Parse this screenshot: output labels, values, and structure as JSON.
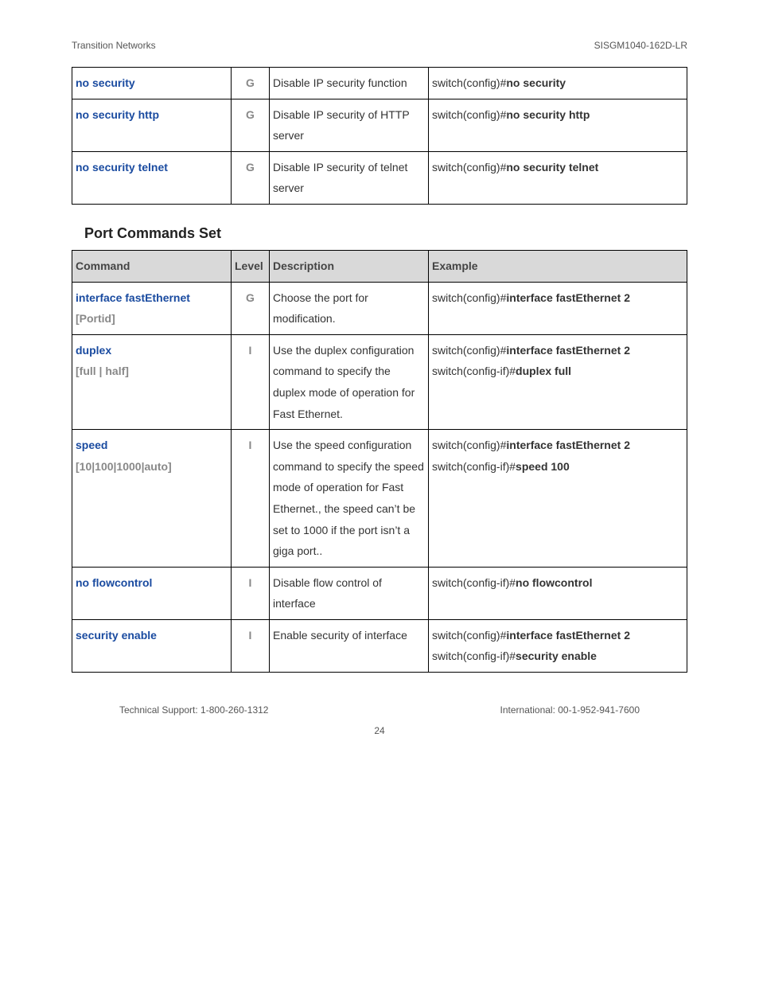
{
  "header": {
    "left": "Transition Networks",
    "right": "SISGM1040-162D-LR"
  },
  "table1": {
    "rows": [
      {
        "cmd_link": "no security",
        "level": "G",
        "desc": "Disable IP security function",
        "ex_prefix": "switch(config)#",
        "ex_bold": "no security"
      },
      {
        "cmd_link": "no security http",
        "level": "G",
        "desc": "Disable IP security of HTTP server",
        "ex_prefix": "switch(config)#",
        "ex_bold": "no security http"
      },
      {
        "cmd_link": "no security telnet",
        "level": "G",
        "desc": "Disable IP security of telnet server",
        "ex_prefix": "switch(config)#",
        "ex_bold": "no security telnet"
      }
    ]
  },
  "section_title": "Port Commands Set",
  "table2": {
    "headers": {
      "cmd": "Command",
      "level": "Level",
      "desc": "Description",
      "ex": "Example"
    },
    "rows": [
      {
        "cmd_link": "interface fastEthernet",
        "cmd_param": "[Portid]",
        "level": "G",
        "desc": "Choose the port for modification.",
        "ex_lines": [
          {
            "prefix": "switch(config)#",
            "bold": "interface fastEthernet 2"
          }
        ]
      },
      {
        "cmd_link": "duplex",
        "cmd_param": "[full | half]",
        "level": "I",
        "desc": "Use the duplex configuration command to specify the duplex mode of operation for Fast Ethernet.",
        "ex_lines": [
          {
            "prefix": "switch(config)#",
            "bold": "interface fastEthernet 2"
          },
          {
            "prefix": "switch(config-if)#",
            "bold": "duplex full"
          }
        ]
      },
      {
        "cmd_link": "speed",
        "cmd_param": "[10|100|1000|auto]",
        "level": "I",
        "desc": "Use the speed configuration command to specify the speed mode of operation for Fast Ethernet., the speed can’t be set to 1000 if the port isn’t a giga port..",
        "ex_lines": [
          {
            "prefix": "switch(config)#",
            "bold": "interface fastEthernet 2"
          },
          {
            "prefix": "switch(config-if)#",
            "bold": "speed 100"
          }
        ]
      },
      {
        "cmd_link": "no flowcontrol",
        "cmd_param": "",
        "level": "I",
        "desc": "Disable flow control of interface",
        "ex_lines": [
          {
            "prefix": "switch(config-if)#",
            "bold": "no flowcontrol"
          }
        ]
      },
      {
        "cmd_link": "security enable",
        "cmd_param": "",
        "level": "I",
        "desc": "Enable security of interface",
        "ex_lines": [
          {
            "prefix": "switch(config)#",
            "bold": "interface fastEthernet 2"
          },
          {
            "prefix": "switch(config-if)#",
            "bold": "security enable"
          }
        ]
      }
    ]
  },
  "footer": {
    "left": "Technical Support: 1-800-260-1312",
    "right": "International: 00-1-952-941-7600",
    "page": "24"
  }
}
